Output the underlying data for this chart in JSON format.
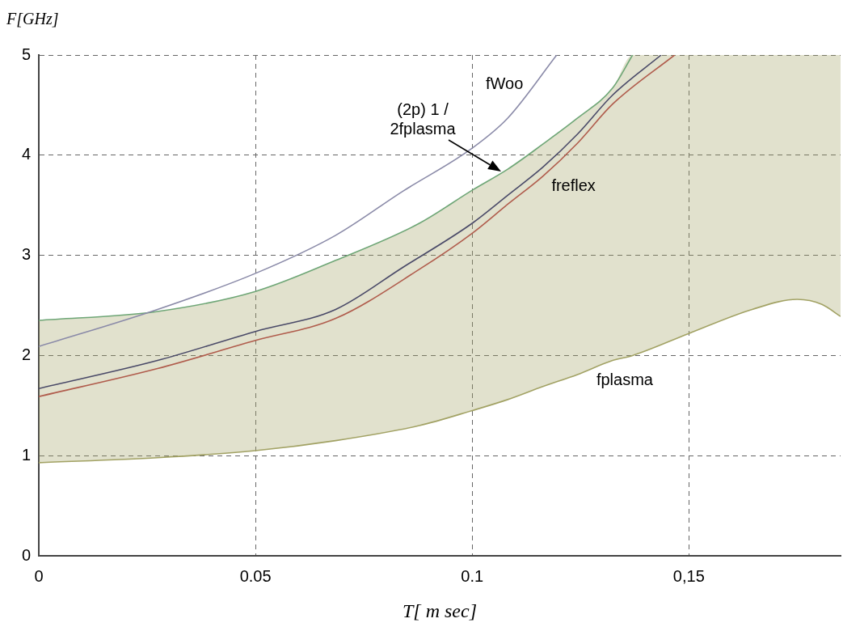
{
  "chart_data": {
    "type": "line",
    "xlabel": "T[ m sec]",
    "ylabel": "F[GHz]",
    "xlim": [
      0,
      0.185
    ],
    "ylim": [
      0,
      5
    ],
    "xticks": [
      0,
      0.05,
      0.1,
      {
        "value": 0.15,
        "label": "0,15"
      }
    ],
    "yticks": [
      0,
      1,
      2,
      3,
      4,
      5
    ],
    "grid": true,
    "legend": false,
    "marker": "none",
    "line_style": "solid",
    "series": [
      {
        "color": "#8a8aa8",
        "x": [
          0,
          0.0274,
          0.05,
          0.0685,
          0.084,
          0.1,
          0.1082,
          0.1195
        ],
        "values": [
          2.09,
          2.46,
          2.82,
          3.2,
          3.64,
          4.07,
          4.37,
          5.0
        ]
      },
      {
        "color": "#6ea676",
        "x": [
          0,
          0.0274,
          0.05,
          0.0685,
          0.0878,
          0.1,
          0.1082,
          0.1163,
          0.1243,
          0.1324,
          0.137
        ],
        "values": [
          2.35,
          2.44,
          2.64,
          2.95,
          3.32,
          3.65,
          3.86,
          4.11,
          4.37,
          4.67,
          5.0
        ]
      },
      {
        "color": "#4a4a68",
        "x": [
          0,
          0.0274,
          0.05,
          0.0685,
          0.084,
          0.1,
          0.1082,
          0.1163,
          0.1243,
          0.1324,
          0.1436
        ],
        "values": [
          1.67,
          1.95,
          2.24,
          2.46,
          2.88,
          3.32,
          3.6,
          3.88,
          4.21,
          4.6,
          5.0
        ]
      },
      {
        "color": "#b05c4c",
        "x": [
          0,
          0.0274,
          0.05,
          0.0685,
          0.0878,
          0.1,
          0.1082,
          0.1163,
          0.1243,
          0.1324,
          0.1467
        ],
        "values": [
          1.59,
          1.87,
          2.15,
          2.37,
          2.86,
          3.22,
          3.51,
          3.79,
          4.12,
          4.51,
          5.0
        ]
      },
      {
        "color": "#a2a264",
        "x": [
          0,
          0.0274,
          0.05,
          0.0685,
          0.0878,
          0.1,
          0.1082,
          0.1163,
          0.1243,
          0.1324,
          0.137,
          0.15,
          0.1646,
          0.175,
          0.1807,
          0.185
        ],
        "values": [
          0.93,
          0.98,
          1.05,
          1.15,
          1.3,
          1.45,
          1.56,
          1.69,
          1.81,
          1.95,
          2.0,
          2.22,
          2.46,
          2.56,
          2.51,
          2.39
        ],
        "lower": [
          0.93,
          0.98,
          1.05,
          1.15,
          1.3,
          1.45,
          1.56,
          1.69,
          1.81,
          1.95,
          2.0,
          2.22,
          2.46,
          2.56,
          2.51,
          2.39
        ],
        "upper": [
          2.35,
          2.44,
          2.64,
          2.95,
          3.32,
          3.65,
          3.86,
          4.11,
          4.37,
          4.67,
          5.0,
          5.0,
          5.0,
          5.0,
          5.0,
          5.0
        ]
      }
    ],
    "annotations": [
      {
        "text": "fWoo",
        "x": 0.1082,
        "y": 4.37
      },
      "(2p) 1 /\n2fplasma",
      {
        "text": "freflex",
        "x": 0.1163,
        "y": 3.79
      },
      {
        "text": "fplasma",
        "x": 0.1324,
        "y": 1.95
      }
    ]
  }
}
